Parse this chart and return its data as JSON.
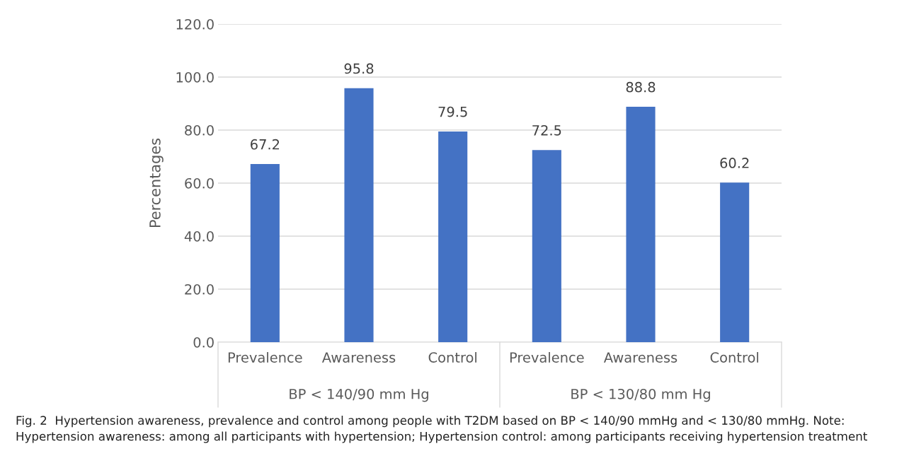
{
  "chart_data": {
    "type": "bar",
    "ylabel": "Percentages",
    "categories": [
      "Prevalence",
      "Awareness",
      "Control",
      "Prevalence",
      "Awareness",
      "Control"
    ],
    "values": [
      67.2,
      95.8,
      79.5,
      72.5,
      88.8,
      60.2
    ],
    "color": "#4472c4",
    "ylim": [
      0,
      120
    ],
    "yticks": [
      {
        "value": 0,
        "label": "0.0"
      },
      {
        "value": 20,
        "label": "20.0"
      },
      {
        "value": 40,
        "label": "40.0"
      },
      {
        "value": 60,
        "label": "60.0"
      },
      {
        "value": 80,
        "label": "80.0"
      },
      {
        "value": 100,
        "label": "100.0"
      },
      {
        "value": 120,
        "label": "120.0"
      }
    ],
    "grid": "y",
    "data_labels": true,
    "annotations": [
      "BP < 140/90 mm Hg",
      "BP < 130/80 mm Hg",
      "Fig. 2  Hypertension awareness, prevalence and control among people with T2DM based on BP < 140/90 mmHg and < 130/80 mmHg. Note: Hypertension awareness: among all participants with hypertension; Hypertension control: among participants receiving hypertension treatment"
    ]
  }
}
